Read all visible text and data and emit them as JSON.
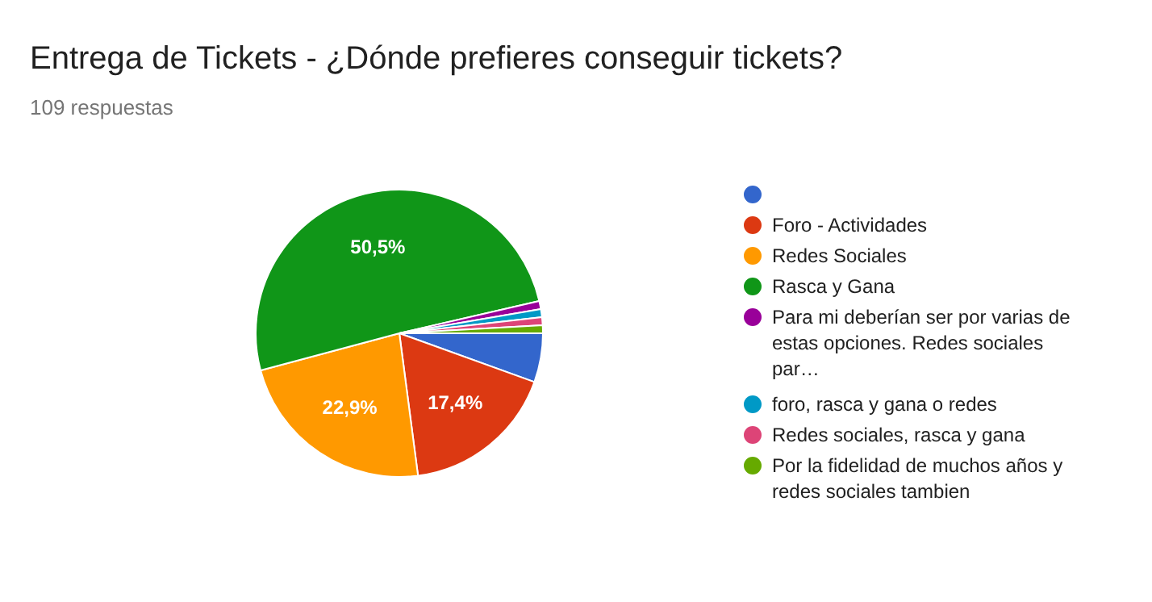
{
  "chart_data": {
    "type": "pie",
    "title": "Entrega de Tickets - ¿Dónde prefieres conseguir tickets?",
    "subtitle": "109 respuestas",
    "categories": [
      null,
      "Foro - Actividades",
      "Redes Sociales",
      "Rasca y Gana",
      "Para mi deberían ser por varias de estas opciones. Redes sociales par…",
      "foro, rasca y gana o redes",
      "Redes sociales, rasca y gana",
      "Por la fidelidad de muchos años y redes sociales tambien"
    ],
    "values": [
      5.5,
      17.4,
      22.9,
      50.5,
      0.9,
      0.9,
      0.9,
      0.9
    ],
    "colors": [
      "#3366cc",
      "#dc3912",
      "#ff9900",
      "#109618",
      "#990099",
      "#0099c6",
      "#dd4477",
      "#66aa00"
    ],
    "value_labels": [
      null,
      "17,4%",
      "22,9%",
      "50,5%",
      null,
      null,
      null,
      null
    ],
    "legend": "right"
  }
}
